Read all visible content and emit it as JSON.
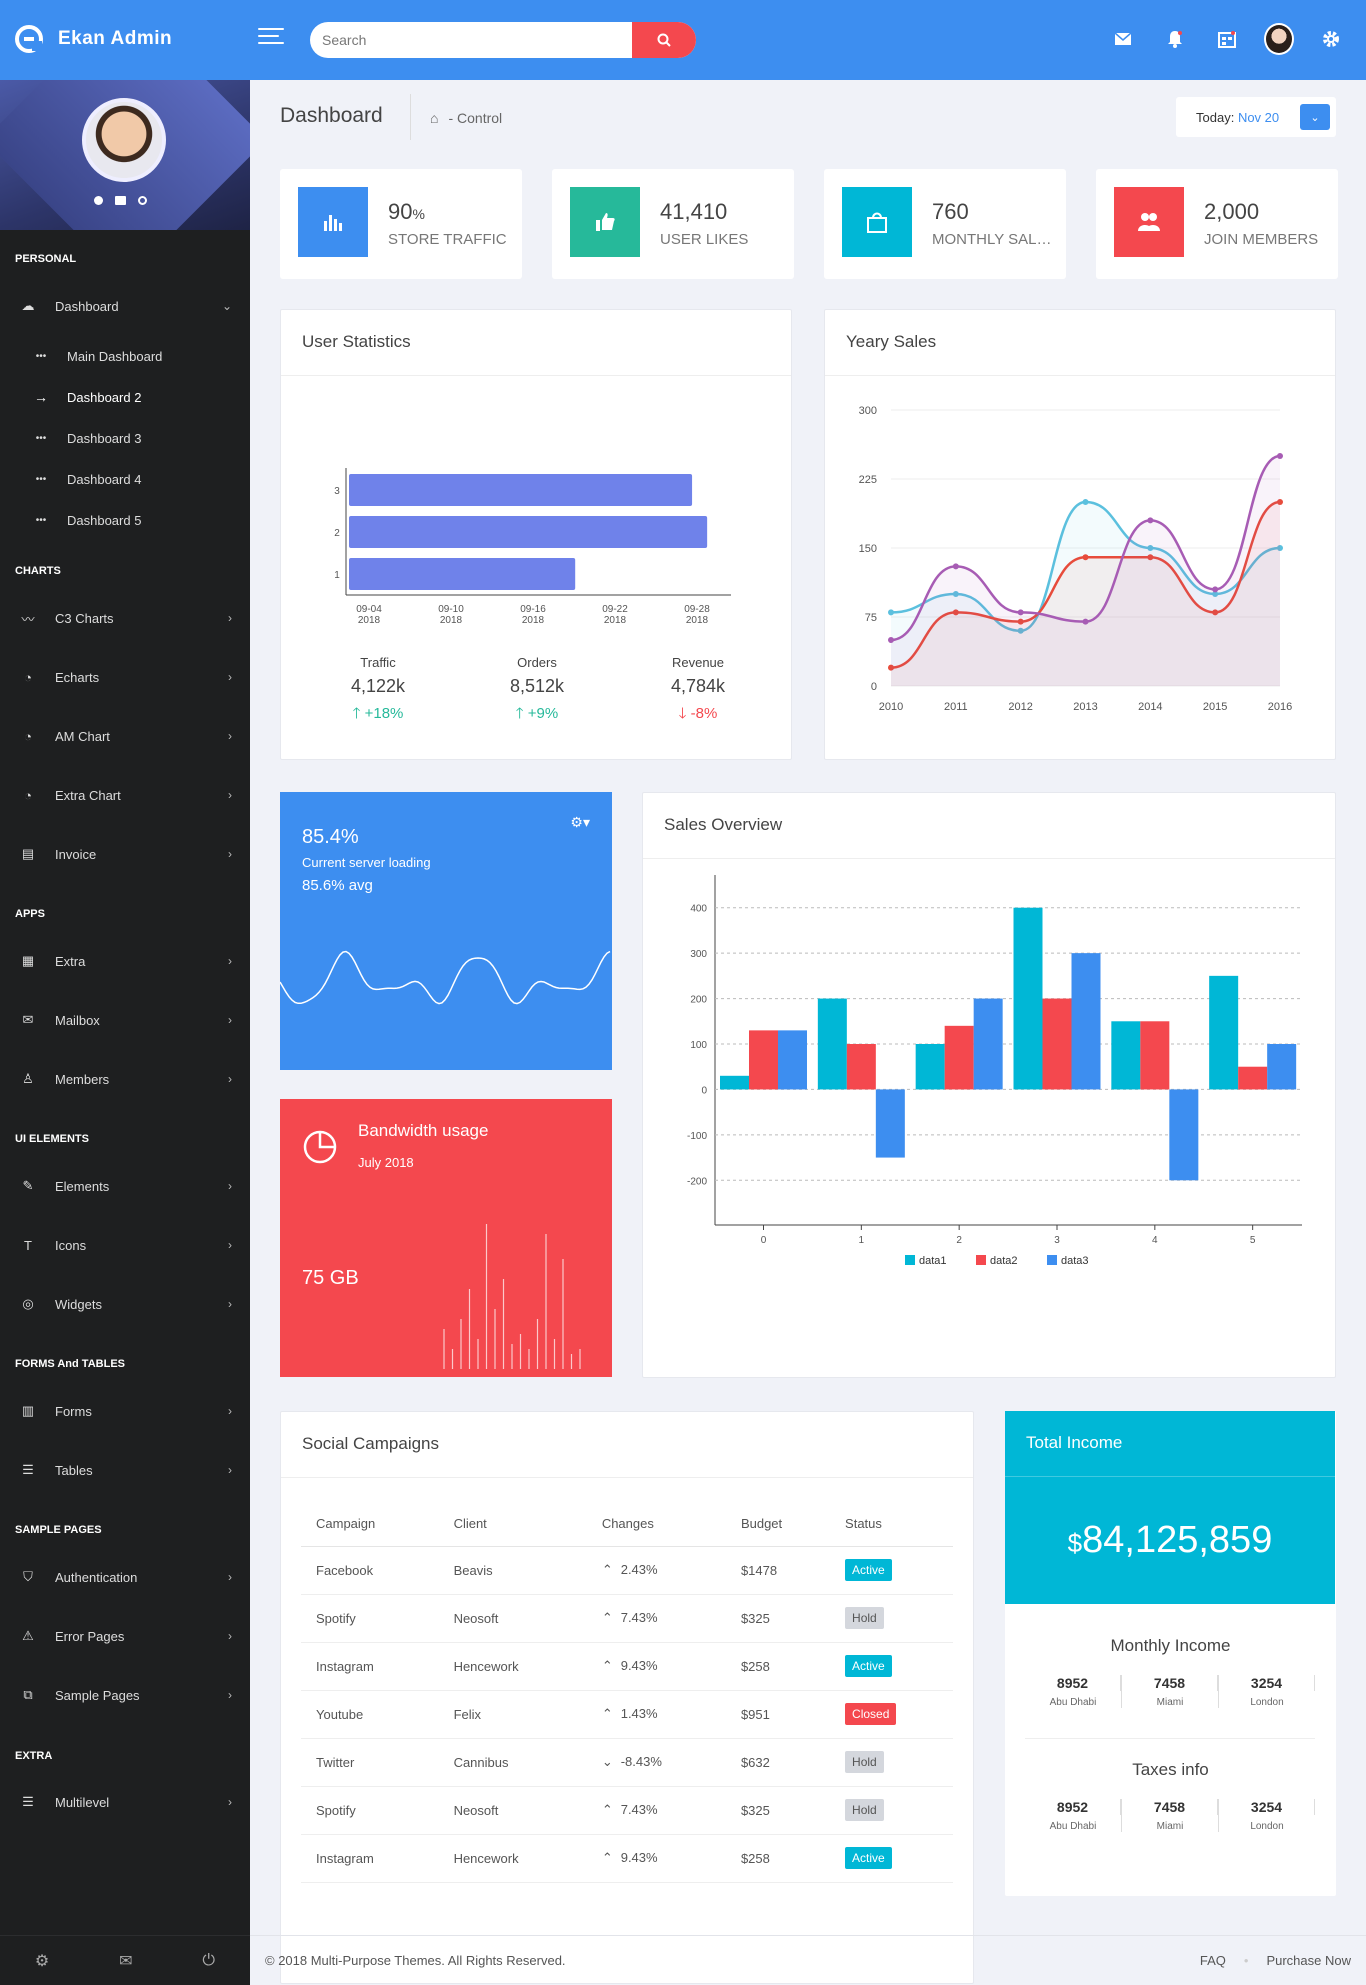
{
  "brand": {
    "name": "Ekan Admin"
  },
  "search": {
    "placeholder": "Search"
  },
  "sidebar": {
    "sections": [
      "PERSONAL",
      "CHARTS",
      "APPS",
      "UI ELEMENTS",
      "FORMS And TABLES",
      "SAMPLE PAGES",
      "EXTRA"
    ],
    "dashboard": "Dashboard",
    "sub": [
      "Main Dashboard",
      "Dashboard 2",
      "Dashboard 3",
      "Dashboard 4",
      "Dashboard 5"
    ],
    "items": [
      "C3 Charts",
      "Echarts",
      "AM Chart",
      "Extra Chart",
      "Invoice",
      "Extra",
      "Mailbox",
      "Members",
      "Elements",
      "Icons",
      "Widgets",
      "Forms",
      "Tables",
      "Authentication",
      "Error Pages",
      "Sample Pages",
      "Multilevel"
    ]
  },
  "header": {
    "title": "Dashboard",
    "crumb": "- Control",
    "today_label": "Today:",
    "today_value": "Nov 20"
  },
  "stats": [
    {
      "value": "90",
      "unit": "%",
      "label": "STORE TRAFFIC",
      "color": "#3d8ef0"
    },
    {
      "value": "41,410",
      "unit": "",
      "label": "USER LIKES",
      "color": "#26b99a"
    },
    {
      "value": "760",
      "unit": "",
      "label": "MONTHLY SALES",
      "color": "#00b7d6"
    },
    {
      "value": "2,000",
      "unit": "",
      "label": "JOIN MEMBERS",
      "color": "#f4484e"
    }
  ],
  "user_stats": {
    "title": "User Statistics",
    "kpis": [
      {
        "label": "Traffic",
        "value": "4,122k",
        "change": "+18%",
        "dir": "up"
      },
      {
        "label": "Orders",
        "value": "8,512k",
        "change": "+9%",
        "dir": "up"
      },
      {
        "label": "Revenue",
        "value": "4,784k",
        "change": "-8%",
        "dir": "down"
      }
    ]
  },
  "yearly_sales": {
    "title": "Yeary Sales"
  },
  "server": {
    "value": "85.4%",
    "label": "Current server loading",
    "avg": "85.6% avg"
  },
  "bandwidth": {
    "title": "Bandwidth usage",
    "date": "July 2018",
    "value": "75 GB"
  },
  "sales_overview": {
    "title": "Sales Overview"
  },
  "campaigns": {
    "title": "Social Campaigns",
    "headers": [
      "Campaign",
      "Client",
      "Changes",
      "Budget",
      "Status"
    ],
    "rows": [
      {
        "campaign": "Facebook",
        "client": "Beavis",
        "change": "2.43%",
        "dir": "up",
        "budget": "$1478",
        "status": "Active"
      },
      {
        "campaign": "Spotify",
        "client": "Neosoft",
        "change": "7.43%",
        "dir": "up",
        "budget": "$325",
        "status": "Hold"
      },
      {
        "campaign": "Instagram",
        "client": "Hencework",
        "change": "9.43%",
        "dir": "up",
        "budget": "$258",
        "status": "Active"
      },
      {
        "campaign": "Youtube",
        "client": "Felix",
        "change": "1.43%",
        "dir": "up",
        "budget": "$951",
        "status": "Closed"
      },
      {
        "campaign": "Twitter",
        "client": "Cannibus",
        "change": "-8.43%",
        "dir": "down",
        "budget": "$632",
        "status": "Hold"
      },
      {
        "campaign": "Spotify",
        "client": "Neosoft",
        "change": "7.43%",
        "dir": "up",
        "budget": "$325",
        "status": "Hold"
      },
      {
        "campaign": "Instagram",
        "client": "Hencework",
        "change": "9.43%",
        "dir": "up",
        "budget": "$258",
        "status": "Active"
      }
    ]
  },
  "income": {
    "title": "Total Income",
    "currency": "$",
    "value": "84,125,859",
    "monthly_title": "Monthly Income",
    "monthly": [
      {
        "v": "8952",
        "c": "Abu Dhabi"
      },
      {
        "v": "7458",
        "c": "Miami"
      },
      {
        "v": "3254",
        "c": "London"
      }
    ],
    "taxes_title": "Taxes info",
    "taxes": [
      {
        "v": "8952",
        "c": "Abu Dhabi"
      },
      {
        "v": "7458",
        "c": "Miami"
      },
      {
        "v": "3254",
        "c": "London"
      }
    ]
  },
  "footer": {
    "copyright": "© 2018 Multi-Purpose Themes. All Rights Reserved.",
    "faq": "FAQ",
    "purchase": "Purchase Now"
  },
  "chart_data": [
    {
      "type": "bar",
      "orientation": "horizontal",
      "title": "User Statistics",
      "categories": [
        "1",
        "2",
        "3"
      ],
      "x_ticks": [
        "09-04\n2018",
        "09-10\n2018",
        "09-16\n2018",
        "09-22\n2018",
        "09-28\n2018"
      ],
      "values": [
        0.6,
        0.95,
        0.91
      ],
      "value_scale": "fraction of x-axis",
      "color": "#6f82ea"
    },
    {
      "type": "line",
      "title": "Yeary Sales",
      "x": [
        "2010",
        "2011",
        "2012",
        "2013",
        "2014",
        "2015",
        "2016"
      ],
      "ylim": [
        0,
        300
      ],
      "y_ticks": [
        0,
        75,
        150,
        225,
        300
      ],
      "series": [
        {
          "color": "#5bc0de",
          "values": [
            80,
            100,
            60,
            200,
            150,
            100,
            150
          ]
        },
        {
          "color": "#e74c3c",
          "values": [
            20,
            80,
            70,
            140,
            140,
            80,
            200
          ]
        },
        {
          "color": "#a75cb4",
          "values": [
            50,
            130,
            80,
            70,
            180,
            105,
            250
          ]
        }
      ]
    },
    {
      "type": "bar",
      "title": "Sales Overview",
      "categories": [
        "0",
        "1",
        "2",
        "3",
        "4",
        "5"
      ],
      "ylim": [
        -250,
        450
      ],
      "y_ticks": [
        -200,
        -100,
        0,
        100,
        200,
        300,
        400
      ],
      "series": [
        {
          "name": "data1",
          "color": "#00b7d6",
          "values": [
            30,
            200,
            100,
            400,
            150,
            250
          ]
        },
        {
          "name": "data2",
          "color": "#f4484e",
          "values": [
            130,
            100,
            140,
            200,
            150,
            50
          ]
        },
        {
          "name": "data3",
          "color": "#3d8ef0",
          "values": [
            130,
            -150,
            200,
            300,
            -200,
            100
          ]
        }
      ]
    }
  ]
}
